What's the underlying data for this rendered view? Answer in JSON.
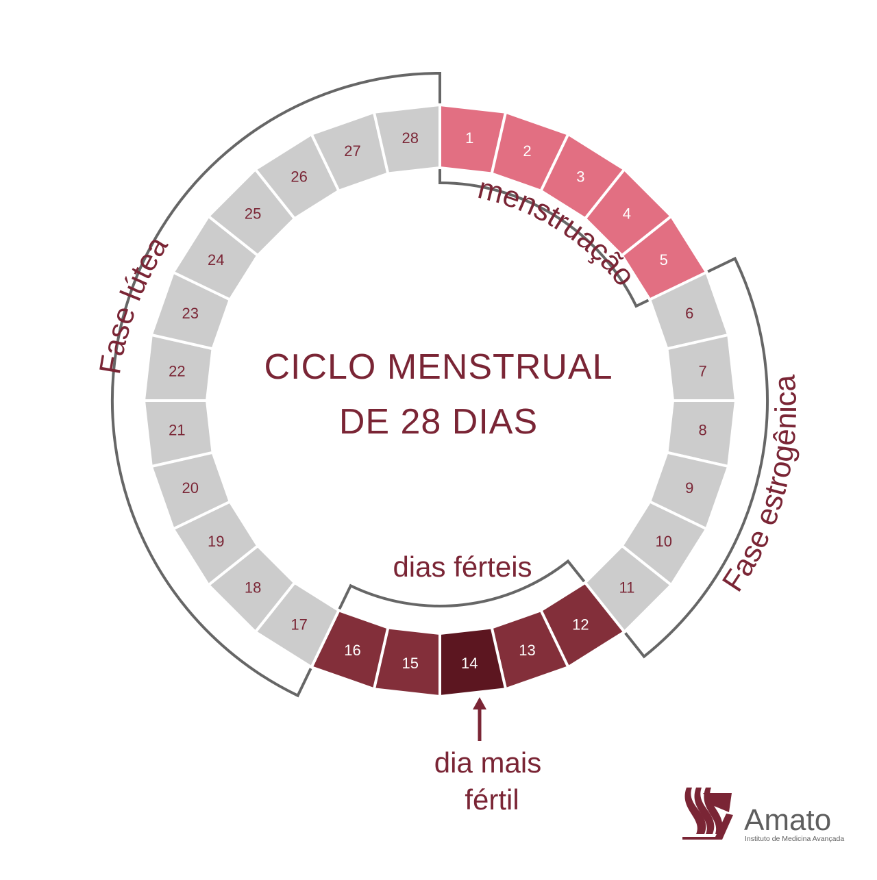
{
  "title": {
    "line1": "CICLO MENSTRUAL",
    "line2": "DE 28 DIAS"
  },
  "days": [
    {
      "n": "1",
      "phase": "menstruation"
    },
    {
      "n": "2",
      "phase": "menstruation"
    },
    {
      "n": "3",
      "phase": "menstruation"
    },
    {
      "n": "4",
      "phase": "menstruation"
    },
    {
      "n": "5",
      "phase": "menstruation"
    },
    {
      "n": "6",
      "phase": "normal"
    },
    {
      "n": "7",
      "phase": "normal"
    },
    {
      "n": "8",
      "phase": "normal"
    },
    {
      "n": "9",
      "phase": "normal"
    },
    {
      "n": "10",
      "phase": "normal"
    },
    {
      "n": "11",
      "phase": "normal"
    },
    {
      "n": "12",
      "phase": "fertile"
    },
    {
      "n": "13",
      "phase": "fertile"
    },
    {
      "n": "14",
      "phase": "peak"
    },
    {
      "n": "15",
      "phase": "fertile"
    },
    {
      "n": "16",
      "phase": "fertile"
    },
    {
      "n": "17",
      "phase": "normal"
    },
    {
      "n": "18",
      "phase": "normal"
    },
    {
      "n": "19",
      "phase": "normal"
    },
    {
      "n": "20",
      "phase": "normal"
    },
    {
      "n": "21",
      "phase": "normal"
    },
    {
      "n": "22",
      "phase": "normal"
    },
    {
      "n": "23",
      "phase": "normal"
    },
    {
      "n": "24",
      "phase": "normal"
    },
    {
      "n": "25",
      "phase": "normal"
    },
    {
      "n": "26",
      "phase": "normal"
    },
    {
      "n": "27",
      "phase": "normal"
    },
    {
      "n": "28",
      "phase": "normal"
    }
  ],
  "labels": {
    "menstruacao": "menstruação",
    "fase_estrogenica": "Fase estrogênica",
    "fase_lutea": "Fase lútea",
    "dias_ferteis": "dias férteis",
    "dia_mais_fertil_1": "dia mais",
    "dia_mais_fertil_2": "fértil"
  },
  "logo": {
    "name": "Amato",
    "subtitle": "Instituto de Medicina Avançada"
  },
  "colors": {
    "menstruation": "#e26f82",
    "normal": "#cccccc",
    "fertile": "#832f3a",
    "peak": "#5c1620",
    "bracket": "#666666",
    "text": "#7a2535",
    "number_on_light": "#7a2535",
    "number_on_dark": "#ffffff",
    "logo_mark": "#7a2535"
  }
}
